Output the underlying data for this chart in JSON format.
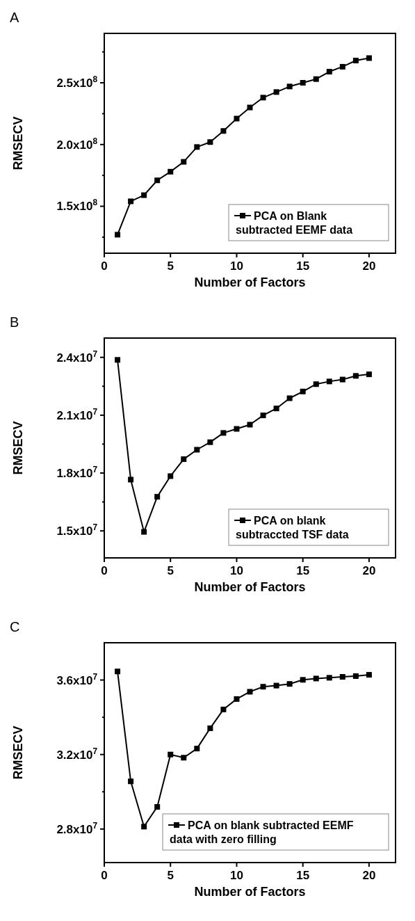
{
  "chart_data": [
    {
      "type": "line",
      "title": "A",
      "xlabel": "Number of Factors",
      "ylabel": "RMSECV",
      "x": [
        1,
        2,
        3,
        4,
        5,
        6,
        7,
        8,
        9,
        10,
        11,
        12,
        13,
        14,
        15,
        16,
        17,
        18,
        19,
        20
      ],
      "xlim": [
        0,
        22
      ],
      "xticks": [
        0,
        5,
        10,
        15,
        20
      ],
      "ylim": [
        112000000,
        290000000
      ],
      "yticks": [
        {
          "value": 125000000,
          "label": null
        },
        {
          "value": 150000000,
          "label": "1.5x10$^{8}$"
        },
        {
          "value": 175000000,
          "label": null
        },
        {
          "value": 200000000,
          "label": "2.0x10$^{8}$"
        },
        {
          "value": 225000000,
          "label": null
        },
        {
          "value": 250000000,
          "label": "2.5x10$^{8}$"
        },
        {
          "value": 275000000,
          "label": null
        }
      ],
      "marker": "square",
      "legend": "bottom right",
      "series": [
        {
          "name": "PCA on Blank subtracted EEMF data",
          "color": "#000000",
          "values": [
            127000000,
            154000000,
            159000000,
            171000000,
            178000000,
            186000000,
            198000000,
            202000000,
            211000000,
            221000000,
            230000000,
            238000000,
            242500000,
            247000000,
            250000000,
            253000000,
            259000000,
            263000000,
            268000000,
            270000000
          ]
        }
      ]
    },
    {
      "type": "line",
      "title": "B",
      "xlabel": "Number of Factors",
      "ylabel": "RMSECV",
      "x": [
        1,
        2,
        3,
        4,
        5,
        6,
        7,
        8,
        9,
        10,
        11,
        12,
        13,
        14,
        15,
        16,
        17,
        18,
        19,
        20
      ],
      "xlim": [
        0,
        22
      ],
      "xticks": [
        0,
        5,
        10,
        15,
        20
      ],
      "ylim": [
        13600000,
        25000000
      ],
      "yticks": [
        {
          "value": 15000000,
          "label": "1.5x10$^{7}$"
        },
        {
          "value": 16500000,
          "label": null
        },
        {
          "value": 18000000,
          "label": "1.8x10$^{7}$"
        },
        {
          "value": 19500000,
          "label": null
        },
        {
          "value": 21000000,
          "label": "2.1x10$^{7}$"
        },
        {
          "value": 22500000,
          "label": null
        },
        {
          "value": 24000000,
          "label": "2.4x10$^{7}$"
        }
      ],
      "marker": "square",
      "legend": "bottom right",
      "series": [
        {
          "name": "PCA on blank subtraccted TSF data",
          "color": "#000000",
          "values": [
            23870000,
            17660000,
            14950000,
            16770000,
            17840000,
            18720000,
            19210000,
            19600000,
            20080000,
            20290000,
            20510000,
            20990000,
            21350000,
            21880000,
            22230000,
            22610000,
            22750000,
            22850000,
            23040000,
            23120000
          ]
        }
      ]
    },
    {
      "type": "line",
      "title": "C",
      "xlabel": "Number of Factors",
      "ylabel": "RMSECV",
      "x": [
        1,
        2,
        3,
        4,
        5,
        6,
        7,
        8,
        9,
        10,
        11,
        12,
        13,
        14,
        15,
        16,
        17,
        18,
        19,
        20
      ],
      "xlim": [
        0,
        22
      ],
      "xticks": [
        0,
        5,
        10,
        15,
        20
      ],
      "ylim": [
        26200000,
        38000000
      ],
      "yticks": [
        {
          "value": 28000000,
          "label": "2.8x10$^{7}$"
        },
        {
          "value": 30000000,
          "label": null
        },
        {
          "value": 32000000,
          "label": "3.2x10$^{7}$"
        },
        {
          "value": 34000000,
          "label": null
        },
        {
          "value": 36000000,
          "label": "3.6x10$^{7}$"
        }
      ],
      "marker": "square",
      "legend": "bottom right",
      "series": [
        {
          "name": "PCA on blank subtracted EEMF data with zero filling",
          "color": "#000000",
          "values": [
            36460000,
            30560000,
            28130000,
            29190000,
            32000000,
            31830000,
            32320000,
            33410000,
            34420000,
            34980000,
            35370000,
            35640000,
            35700000,
            35790000,
            36010000,
            36080000,
            36120000,
            36170000,
            36210000,
            36280000
          ]
        }
      ]
    }
  ]
}
